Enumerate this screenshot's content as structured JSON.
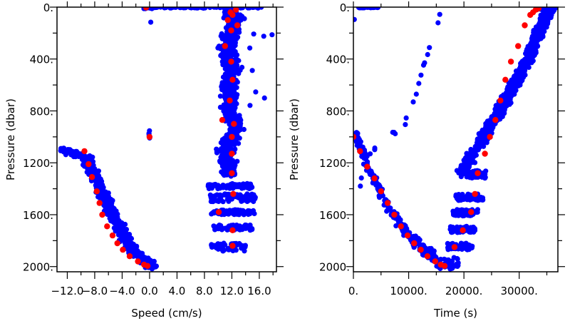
{
  "chart_data": [
    {
      "type": "scatter",
      "xlabel": "Speed (cm/s)",
      "ylabel": "Pressure (dbar)",
      "xlim": [
        -13.5,
        18.5
      ],
      "ylim": [
        2040,
        0
      ],
      "x_ticks": [
        -12.0,
        -8.0,
        -4.0,
        0.0,
        4.0,
        8.0,
        12.0,
        16.0
      ],
      "x_tick_labels": [
        "−12.0",
        "−8.0",
        "−4.0",
        "0.0",
        "4.0",
        "8.0",
        "12.0",
        "16.0"
      ],
      "y_ticks": [
        0,
        400,
        800,
        1200,
        1600,
        2000
      ],
      "y_tick_labels": [
        "0.",
        "400.",
        "800.",
        "1200.",
        "1600.",
        "2000."
      ],
      "grid": false,
      "colors": {
        "raw": "#0000ff",
        "averaged": "#ff0000"
      },
      "series": [
        {
          "role": "raw",
          "clusters": [
            {
              "shape": "band",
              "x": [
                -0.5,
                16.5
              ],
              "y": [
                0,
                8
              ],
              "n": 60
            },
            {
              "shape": "band",
              "x": [
                -1.0,
                1.0
              ],
              "y": [
                0,
                12
              ],
              "n": 20
            },
            {
              "shape": "band",
              "x": [
                0.0,
                0.2
              ],
              "y": [
                110,
                120
              ],
              "n": 1
            },
            {
              "shape": "band",
              "x": [
                -0.1,
                0.1
              ],
              "y": [
                950,
                1020
              ],
              "n": 6
            },
            {
              "shape": "curve",
              "x": [
                -12.6,
                -9.2,
                -7.6,
                -5.8,
                -4.0,
                -2.3,
                -0.6,
                0.4
              ],
              "y": [
                1100,
                1160,
                1350,
                1550,
                1740,
                1880,
                1960,
                2000
              ],
              "spread_x": 1.2,
              "spread_y": 25,
              "n": 700
            },
            {
              "shape": "curve",
              "x": [
                11.5,
                12.5,
                12.0,
                11.2,
                11.8,
                12.2,
                11.5,
                11.9,
                11.5,
                12.4,
                12.0,
                11.0,
                11.5,
                11.8
              ],
              "y": [
                20,
                100,
                200,
                300,
                400,
                500,
                600,
                700,
                800,
                900,
                1000,
                1100,
                1200,
                1300
              ],
              "spread_x": 1.7,
              "spread_y": 25,
              "n": 900
            },
            {
              "shape": "band",
              "x": [
                8.5,
                15.0
              ],
              "y": [
                1360,
                1400
              ],
              "n": 70
            },
            {
              "shape": "band",
              "x": [
                8.8,
                15.5
              ],
              "y": [
                1440,
                1500
              ],
              "n": 70
            },
            {
              "shape": "band",
              "x": [
                9.0,
                15.5
              ],
              "y": [
                1560,
                1600
              ],
              "n": 70
            },
            {
              "shape": "band",
              "x": [
                9.2,
                15.0
              ],
              "y": [
                1680,
                1720
              ],
              "n": 60
            },
            {
              "shape": "band",
              "x": [
                9.0,
                14.0
              ],
              "y": [
                1820,
                1880
              ],
              "n": 50
            },
            {
              "shape": "band",
              "x": [
                14.5,
                18.0
              ],
              "y": [
                80,
                760
              ],
              "n": 8
            }
          ]
        },
        {
          "role": "averaged",
          "points": [
            [
              12.6,
              20
            ],
            [
              11.8,
              40
            ],
            [
              12.1,
              60
            ],
            [
              11.4,
              100
            ],
            [
              12.8,
              140
            ],
            [
              11.9,
              180
            ],
            [
              11.0,
              300
            ],
            [
              11.9,
              420
            ],
            [
              12.1,
              560
            ],
            [
              11.7,
              720
            ],
            [
              10.6,
              870
            ],
            [
              12.3,
              900
            ],
            [
              12.0,
              1000
            ],
            [
              12.0,
              1130
            ],
            [
              12.0,
              1280
            ],
            [
              12.2,
              1440
            ],
            [
              10.1,
              1580
            ],
            [
              12.1,
              1720
            ],
            [
              12.1,
              1840
            ],
            [
              0.0,
              1000
            ],
            [
              -9.5,
              1110
            ],
            [
              -8.9,
              1210
            ],
            [
              -8.4,
              1310
            ],
            [
              -7.7,
              1420
            ],
            [
              -7.3,
              1510
            ],
            [
              -6.9,
              1600
            ],
            [
              -6.2,
              1690
            ],
            [
              -5.4,
              1760
            ],
            [
              -4.7,
              1820
            ],
            [
              -3.9,
              1870
            ],
            [
              -2.9,
              1920
            ],
            [
              -1.7,
              1960
            ],
            [
              -0.8,
              1985
            ],
            [
              -0.3,
              1995
            ],
            [
              -0.5,
              3
            ]
          ]
        }
      ]
    },
    {
      "type": "scatter",
      "xlabel": "Time (s)",
      "ylabel": "Pressure (dbar)",
      "xlim": [
        0,
        37000
      ],
      "ylim": [
        2040,
        0
      ],
      "x_ticks": [
        0,
        10000,
        20000,
        30000
      ],
      "x_tick_labels": [
        "0.",
        "10000.",
        "20000.",
        "30000."
      ],
      "y_ticks": [
        0,
        400,
        800,
        1200,
        1600,
        2000
      ],
      "y_tick_labels": [
        "0.",
        "400.",
        "800.",
        "1200.",
        "1600.",
        "2000."
      ],
      "grid": false,
      "colors": {
        "raw": "#0000ff",
        "averaged": "#ff0000"
      },
      "series": [
        {
          "role": "raw",
          "clusters": [
            {
              "shape": "band",
              "x": [
                500,
                4500
              ],
              "y": [
                0,
                5
              ],
              "n": 30
            },
            {
              "shape": "band",
              "x": [
                0,
                200
              ],
              "y": [
                80,
                120
              ],
              "n": 1
            },
            {
              "shape": "curve",
              "x": [
                100,
                1500,
                3000,
                5000,
                7000,
                9000,
                11000,
                13000,
                15000
              ],
              "y": [
                960,
                1100,
                1270,
                1430,
                1580,
                1700,
                1800,
                1880,
                1950
              ],
              "spread_x": 250,
              "spread_y": 70,
              "n": 230
            },
            {
              "shape": "band",
              "x": [
                15000,
                19000
              ],
              "y": [
                1930,
                2020
              ],
              "n": 40
            },
            {
              "shape": "curve",
              "x": [
                500,
                1200,
                1800,
                3500,
                6000,
                8500,
                10500,
                12500,
                14500,
                16000
              ],
              "y": [
                1960,
                1400,
                1200,
                1100,
                1000,
                950,
                800,
                500,
                200,
                20
              ],
              "spread_x": 150,
              "spread_y": 30,
              "n": 22
            },
            {
              "shape": "band",
              "x": [
                17000,
                21500
              ],
              "y": [
                1820,
                1870
              ],
              "n": 60
            },
            {
              "shape": "band",
              "x": [
                17500,
                22000
              ],
              "y": [
                1690,
                1740
              ],
              "n": 60
            },
            {
              "shape": "band",
              "x": [
                18000,
                22500
              ],
              "y": [
                1560,
                1610
              ],
              "n": 60
            },
            {
              "shape": "band",
              "x": [
                18500,
                23500
              ],
              "y": [
                1440,
                1490
              ],
              "n": 60
            },
            {
              "shape": "band",
              "x": [
                19000,
                24000
              ],
              "y": [
                1260,
                1320
              ],
              "n": 60
            },
            {
              "shape": "curve",
              "x": [
                19500,
                23500,
                26500,
                29000,
                31500,
                33500,
                35500
              ],
              "y": [
                1280,
                1000,
                800,
                600,
                400,
                200,
                10
              ],
              "spread_x": 1400,
              "spread_y": 25,
              "n": 900
            },
            {
              "shape": "band",
              "x": [
                33000,
                36500
              ],
              "y": [
                0,
                20
              ],
              "n": 30
            }
          ]
        },
        {
          "role": "averaged",
          "points": [
            [
              0,
              1000
            ],
            [
              1200,
              1110
            ],
            [
              2500,
              1230
            ],
            [
              3800,
              1320
            ],
            [
              5000,
              1420
            ],
            [
              6200,
              1510
            ],
            [
              7400,
              1600
            ],
            [
              8600,
              1690
            ],
            [
              9800,
              1760
            ],
            [
              11000,
              1820
            ],
            [
              12200,
              1870
            ],
            [
              13400,
              1920
            ],
            [
              14800,
              1960
            ],
            [
              15800,
              1985
            ],
            [
              16500,
              1995
            ],
            [
              18300,
              1850
            ],
            [
              19800,
              1720
            ],
            [
              21300,
              1580
            ],
            [
              22000,
              1440
            ],
            [
              22500,
              1280
            ],
            [
              23800,
              1130
            ],
            [
              24700,
              1000
            ],
            [
              25700,
              870
            ],
            [
              26600,
              720
            ],
            [
              27500,
              560
            ],
            [
              28500,
              420
            ],
            [
              29800,
              300
            ],
            [
              31000,
              140
            ],
            [
              32000,
              60
            ],
            [
              32500,
              40
            ],
            [
              33000,
              20
            ],
            [
              33500,
              10
            ]
          ]
        }
      ]
    }
  ]
}
